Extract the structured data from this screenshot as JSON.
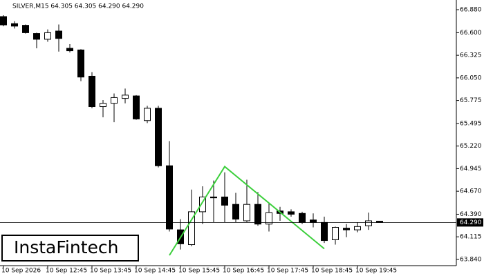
{
  "chart_data": {
    "type": "candlestick",
    "title": "SILVER,M15  64.305 64.305 64.290 64.290",
    "categories": [
      "10 Sep 2026",
      null,
      null,
      null,
      "10 Sep 12:45",
      null,
      null,
      null,
      "10 Sep 13:45",
      null,
      null,
      null,
      "10 Sep 14:45",
      null,
      null,
      null,
      "10 Sep 15:45",
      null,
      null,
      null,
      "10 Sep 16:45",
      null,
      null,
      null,
      "10 Sep 17:45",
      null,
      null,
      null,
      "10 Sep 18:45",
      null,
      null,
      null,
      "10 Sep 19:45",
      null,
      null
    ],
    "open": [
      66.796,
      66.71,
      66.69,
      66.59,
      66.52,
      66.62,
      66.41,
      66.39,
      66.07,
      65.7,
      65.74,
      65.8,
      65.83,
      65.53,
      65.68,
      64.98,
      64.2,
      64.02,
      64.42,
      64.6,
      64.6,
      64.51,
      64.31,
      64.51,
      64.27,
      64.43,
      64.42,
      64.4,
      64.32,
      64.29,
      64.08,
      64.22,
      64.2,
      64.25,
      64.305
    ],
    "high": [
      66.813,
      66.74,
      66.7,
      66.6,
      66.64,
      66.7,
      66.46,
      66.4,
      66.12,
      65.78,
      65.86,
      65.92,
      65.84,
      65.71,
      65.71,
      65.28,
      64.33,
      64.69,
      64.73,
      64.8,
      64.9,
      64.65,
      64.81,
      64.66,
      64.52,
      64.48,
      64.45,
      64.42,
      64.4,
      64.36,
      64.24,
      64.27,
      64.29,
      64.41,
      64.305
    ],
    "low": [
      66.678,
      66.65,
      66.59,
      66.41,
      66.49,
      66.37,
      66.36,
      66.01,
      65.68,
      65.57,
      65.51,
      65.74,
      65.54,
      65.5,
      64.96,
      64.18,
      63.96,
      64.0,
      64.27,
      64.29,
      64.29,
      64.29,
      64.29,
      64.25,
      64.18,
      64.31,
      64.36,
      64.27,
      64.23,
      64.04,
      64.02,
      64.11,
      64.17,
      64.2,
      64.29
    ],
    "close": [
      66.695,
      66.68,
      66.6,
      66.52,
      66.6,
      66.53,
      66.38,
      66.06,
      65.7,
      65.74,
      65.81,
      65.84,
      65.55,
      65.68,
      64.98,
      64.21,
      64.03,
      64.42,
      64.6,
      64.59,
      64.5,
      64.33,
      64.51,
      64.27,
      64.41,
      64.4,
      64.39,
      64.29,
      64.29,
      64.07,
      64.23,
      64.2,
      64.24,
      64.31,
      64.29
    ],
    "up_color": "#ffffff",
    "down_color": "#000000",
    "ylim": [
      63.764,
      66.998
    ],
    "yticks": [
      {
        "value": 66.88,
        "label": "66.880"
      },
      {
        "value": 66.6,
        "label": "66.600"
      },
      {
        "value": 66.325,
        "label": "66.325"
      },
      {
        "value": 66.05,
        "label": "66.050"
      },
      {
        "value": 65.775,
        "label": "65.775"
      },
      {
        "value": 65.495,
        "label": "65.495"
      },
      {
        "value": 65.22,
        "label": "65.220"
      },
      {
        "value": 64.945,
        "label": "64.945"
      },
      {
        "value": 64.67,
        "label": "64.670"
      },
      {
        "value": 64.39,
        "label": "64.390"
      },
      {
        "value": 64.115,
        "label": "64.115"
      },
      {
        "value": 63.84,
        "label": "63.840"
      }
    ],
    "last_price": {
      "value": 64.29,
      "label": "64.290"
    },
    "pattern": {
      "color": "#3ccf3c",
      "indices": [
        15,
        20,
        29
      ],
      "values": [
        63.89,
        64.97,
        63.97
      ]
    },
    "grid": false
  },
  "logo": "InstaFintech"
}
